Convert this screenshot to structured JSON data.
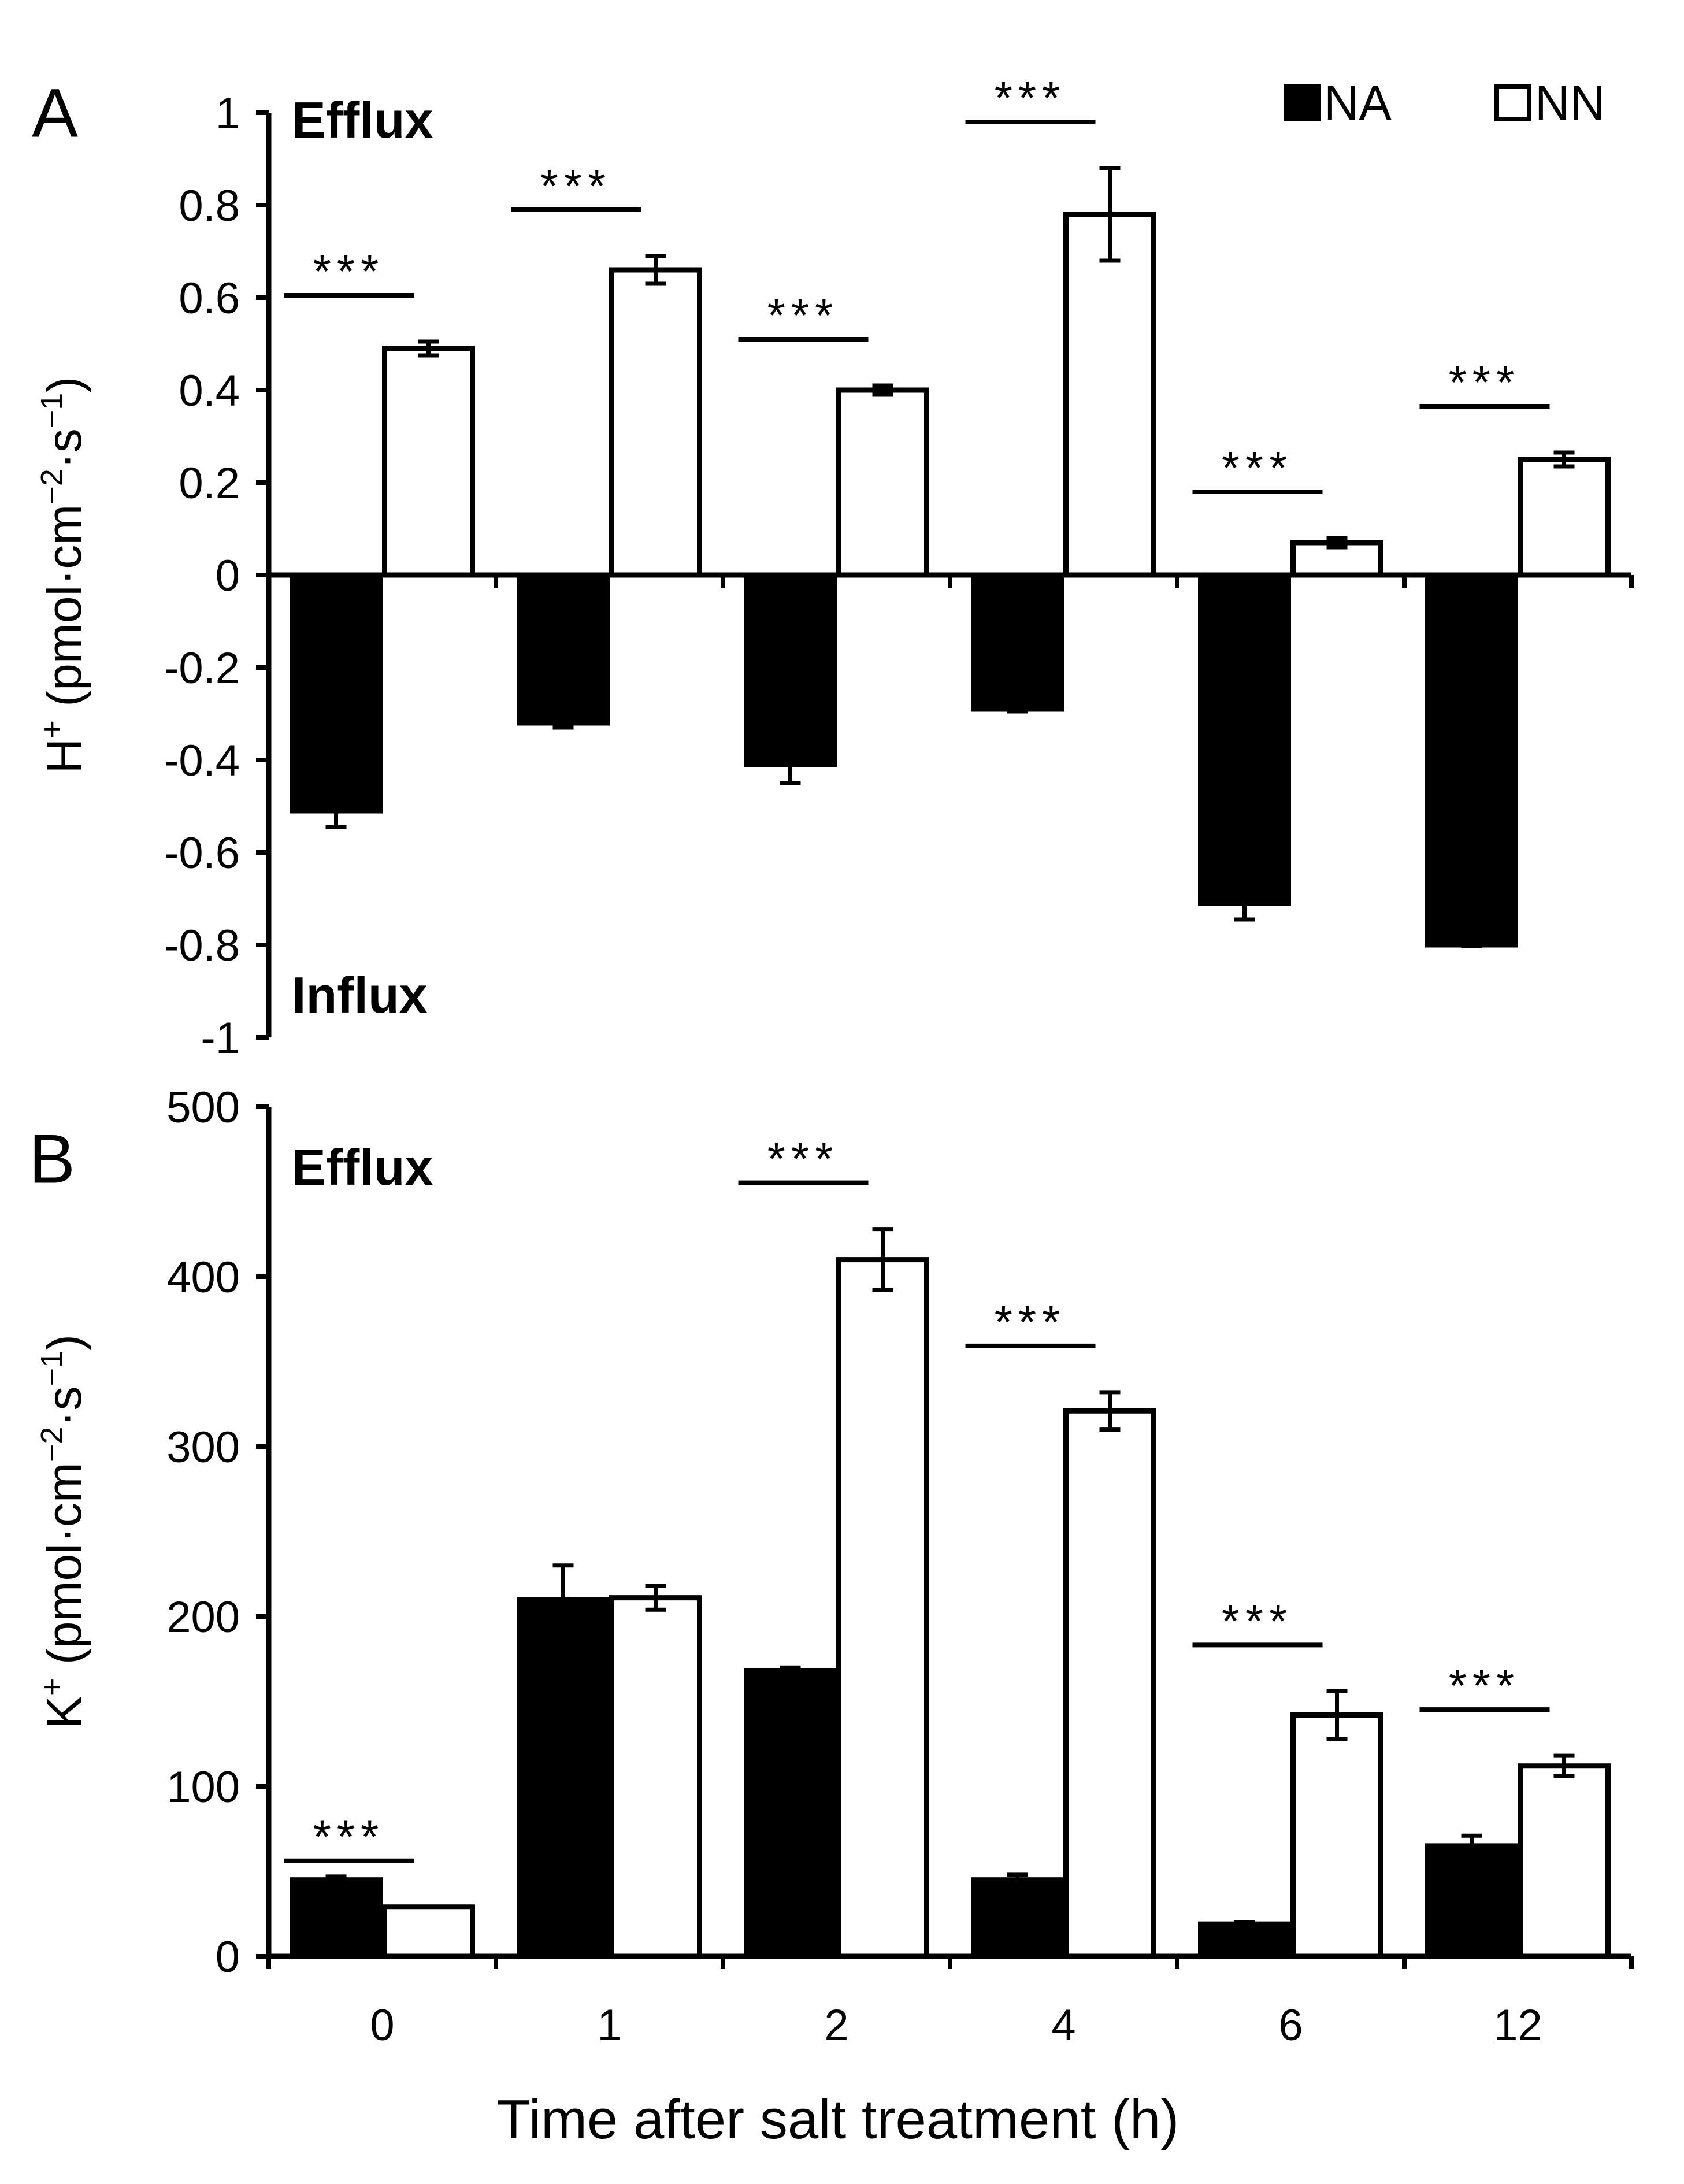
{
  "chart_data": [
    {
      "panel": "A",
      "type": "bar",
      "ylabel": "H⁺ (pmol·cm⁻²·s⁻¹)",
      "ylabel_main": "H",
      "ylabel_sup1": "+",
      "ylabel_mid": " (pmol·cm",
      "ylabel_sup2": "−2",
      "ylabel_mid2": "·s",
      "ylabel_sup3": "−1",
      "ylabel_end": ")",
      "ylim": [
        -1,
        1
      ],
      "yticks": [
        1,
        0.8,
        0.6,
        0.4,
        0.2,
        0,
        -0.2,
        -0.4,
        -0.6,
        -0.8,
        -1
      ],
      "ytick_labels": [
        "1",
        "0.8",
        "0.6",
        "0.4",
        "0.2",
        "0",
        "-0.2",
        "-0.4",
        "-0.6",
        "-0.8",
        "-1"
      ],
      "categories": [
        "0",
        "1",
        "2",
        "4",
        "6",
        "12"
      ],
      "series": [
        {
          "name": "NA",
          "fill": "#000000",
          "values": [
            -0.51,
            -0.32,
            -0.41,
            -0.29,
            -0.71,
            -0.8
          ],
          "errors": [
            0.035,
            0.01,
            0.04,
            0.005,
            0.035,
            0.003
          ]
        },
        {
          "name": "NN",
          "fill": "#ffffff",
          "values": [
            0.49,
            0.66,
            0.4,
            0.78,
            0.07,
            0.25
          ],
          "errors": [
            0.015,
            0.03,
            0.01,
            0.1,
            0.01,
            0.015
          ]
        }
      ],
      "significance": [
        "***",
        "***",
        "***",
        "***",
        "***",
        "***"
      ],
      "annotations": {
        "top": "Efflux",
        "bottom": "Influx"
      },
      "legend": {
        "position": "top-right",
        "entries": [
          "NA",
          "NN"
        ]
      }
    },
    {
      "panel": "B",
      "type": "bar",
      "ylabel": "K⁺ (pmol·cm⁻²·s⁻¹)",
      "ylabel_main": "K",
      "ylabel_sup1": "+",
      "ylabel_mid": " (pmol·cm",
      "ylabel_sup2": "−2",
      "ylabel_mid2": "·s",
      "ylabel_sup3": "−1",
      "ylabel_end": ")",
      "ylim": [
        0,
        500
      ],
      "yticks": [
        500,
        400,
        300,
        200,
        100,
        0
      ],
      "ytick_labels": [
        "500",
        "400",
        "300",
        "200",
        "100",
        "0"
      ],
      "categories": [
        "0",
        "1",
        "2",
        "4",
        "6",
        "12"
      ],
      "series": [
        {
          "name": "NA",
          "fill": "#000000",
          "values": [
            45,
            210,
            168,
            45,
            19,
            65
          ],
          "errors": [
            2,
            20,
            2,
            3,
            1,
            6
          ]
        },
        {
          "name": "NN",
          "fill": "#ffffff",
          "values": [
            29,
            211,
            410,
            321,
            142,
            112
          ],
          "errors": [
            0,
            7,
            18,
            11,
            14,
            6
          ]
        }
      ],
      "significance": [
        "***",
        "",
        "***",
        "***",
        "***",
        "***"
      ],
      "annotations": {
        "top": "Efflux"
      },
      "xlabel": "Time after salt treatment (h)"
    }
  ]
}
